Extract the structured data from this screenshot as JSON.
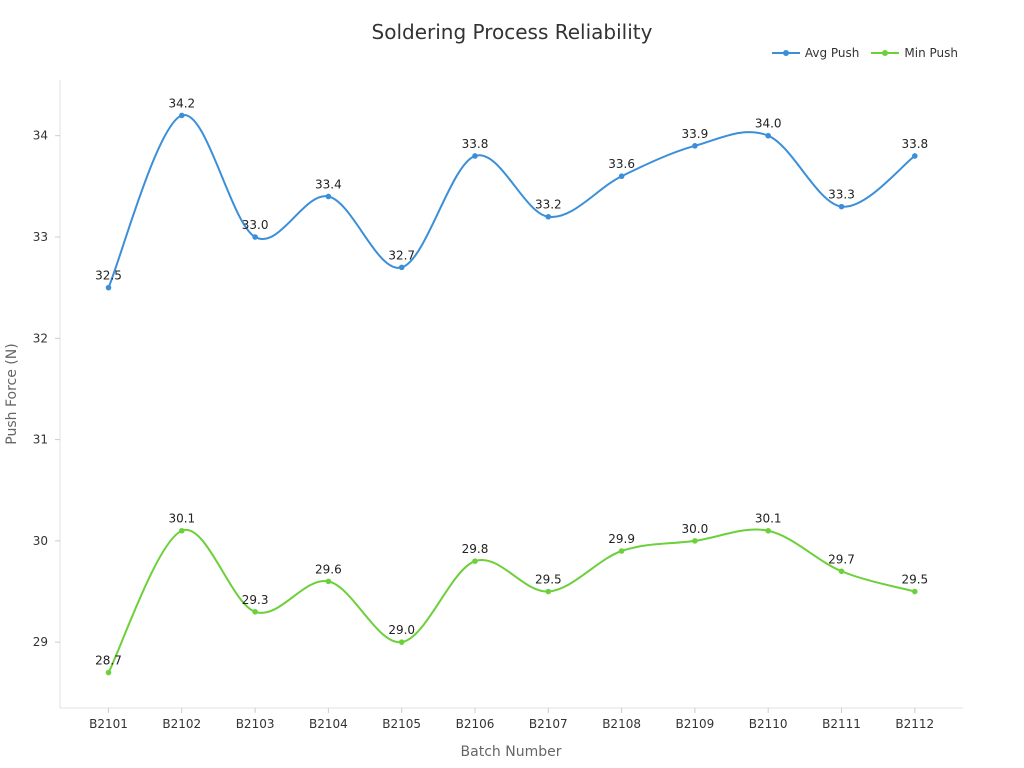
{
  "chart_data": {
    "type": "line",
    "title": "Soldering Process Reliability",
    "xlabel": "Batch Number",
    "ylabel": "Push Force (N)",
    "categories": [
      "B2101",
      "B2102",
      "B2103",
      "B2104",
      "B2105",
      "B2106",
      "B2107",
      "B2108",
      "B2109",
      "B2110",
      "B2111",
      "B2112"
    ],
    "ylim": [
      28.35,
      34.55
    ],
    "yticks": [
      29,
      30,
      31,
      32,
      33,
      34
    ],
    "grid": false,
    "legend_position": "top-right",
    "series": [
      {
        "name": "Avg Push",
        "color": "#3b8fd9",
        "values": [
          32.5,
          34.2,
          33.0,
          33.4,
          32.7,
          33.8,
          33.2,
          33.6,
          33.9,
          34.0,
          33.3,
          33.8
        ]
      },
      {
        "name": "Min Push",
        "color": "#6cd03a",
        "values": [
          28.7,
          30.1,
          29.3,
          29.6,
          29.0,
          29.8,
          29.5,
          29.9,
          30.0,
          30.1,
          29.7,
          29.5
        ]
      }
    ]
  }
}
